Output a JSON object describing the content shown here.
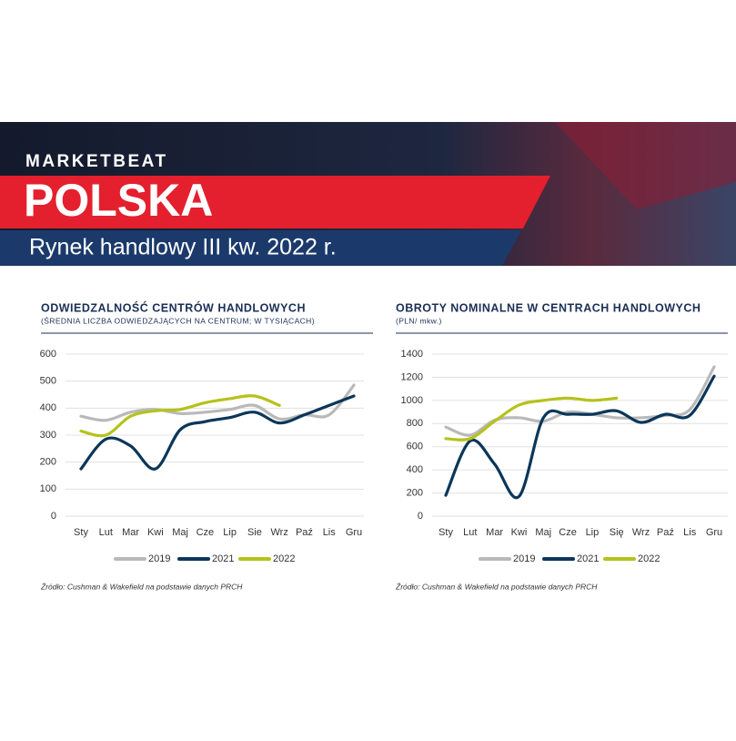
{
  "header": {
    "kicker": "MARKETBEAT",
    "title": "POLSKA",
    "subtitle": "Rynek handlowy III kw. 2022 r."
  },
  "chart_data": [
    {
      "type": "line",
      "title": "ODWIEDZALNOŚĆ CENTRÓW HANDLOWYCH",
      "subtitle": "(ŚREDNIA LICZBA ODWIEDZAJĄCYCH NA CENTRUM; W TYSIĄCACH)",
      "categories": [
        "Sty",
        "Lut",
        "Mar",
        "Kwi",
        "Maj",
        "Cze",
        "Lip",
        "Sie",
        "Wrz",
        "Paź",
        "Lis",
        "Gru"
      ],
      "series": [
        {
          "name": "2019",
          "color": "#b9b9b9",
          "values": [
            370,
            355,
            385,
            395,
            380,
            385,
            395,
            410,
            360,
            375,
            375,
            485
          ]
        },
        {
          "name": "2021",
          "color": "#0b3659",
          "values": [
            175,
            285,
            260,
            175,
            320,
            350,
            365,
            385,
            345,
            375,
            410,
            445
          ]
        },
        {
          "name": "2022",
          "color": "#b5c21b",
          "values": [
            315,
            300,
            370,
            390,
            395,
            420,
            435,
            445,
            410,
            null,
            null,
            null
          ]
        }
      ],
      "ylim": [
        0,
        600
      ],
      "yticks": [
        0,
        100,
        200,
        300,
        400,
        500,
        600
      ],
      "grid": true,
      "source": "Źródło: Cushman & Wakefield na podstawie danych PRCH"
    },
    {
      "type": "line",
      "title": "OBROTY NOMINALNE W CENTRACH HANDLOWYCH",
      "subtitle": "(PLN/ mkw.)",
      "categories": [
        "Sty",
        "Lut",
        "Mar",
        "Kwi",
        "Maj",
        "Cze",
        "Lip",
        "Się",
        "Wrz",
        "Paź",
        "Lis",
        "Gru"
      ],
      "series": [
        {
          "name": "2019",
          "color": "#b9b9b9",
          "values": [
            770,
            700,
            830,
            850,
            820,
            900,
            880,
            850,
            850,
            870,
            920,
            1290
          ]
        },
        {
          "name": "2021",
          "color": "#0b3659",
          "values": [
            180,
            650,
            450,
            170,
            850,
            880,
            880,
            910,
            810,
            880,
            870,
            1210
          ]
        },
        {
          "name": "2022",
          "color": "#b5c21b",
          "values": [
            670,
            670,
            820,
            960,
            1000,
            1020,
            1000,
            1020,
            null,
            null,
            null,
            null
          ]
        }
      ],
      "ylim": [
        0,
        1400
      ],
      "yticks": [
        0,
        200,
        400,
        600,
        800,
        1000,
        1200,
        1400
      ],
      "grid": true,
      "source": "Źródło: Cushman & Wakefield na podstawie danych PRCH"
    }
  ]
}
